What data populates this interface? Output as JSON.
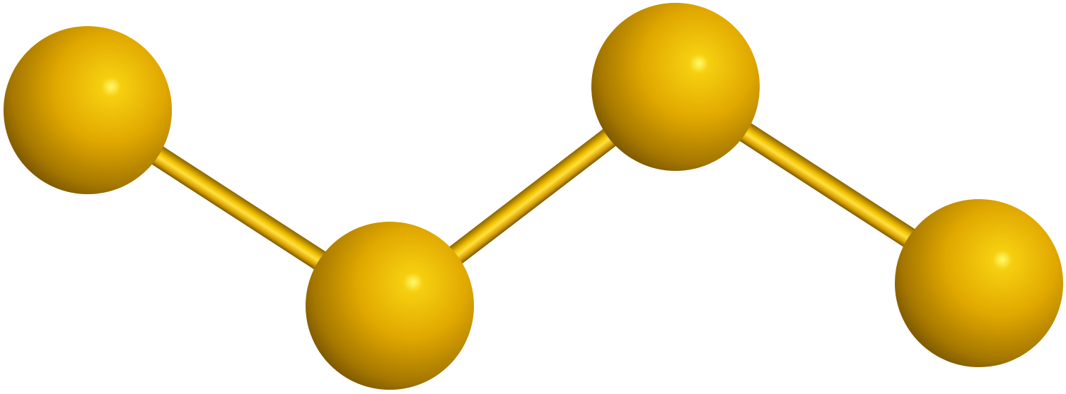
{
  "molecule": {
    "atom_count": 4,
    "bond_count": 3,
    "atom_color": "#e8b000",
    "bond_color": "#f0c000",
    "highlight_color": "#fffb70",
    "shadow_color": "#6a4a00",
    "atoms": [
      {
        "element": "S"
      },
      {
        "element": "S"
      },
      {
        "element": "S"
      },
      {
        "element": "S"
      }
    ],
    "bonds": [
      {
        "from": 0,
        "to": 1
      },
      {
        "from": 1,
        "to": 2
      },
      {
        "from": 2,
        "to": 3
      }
    ]
  }
}
